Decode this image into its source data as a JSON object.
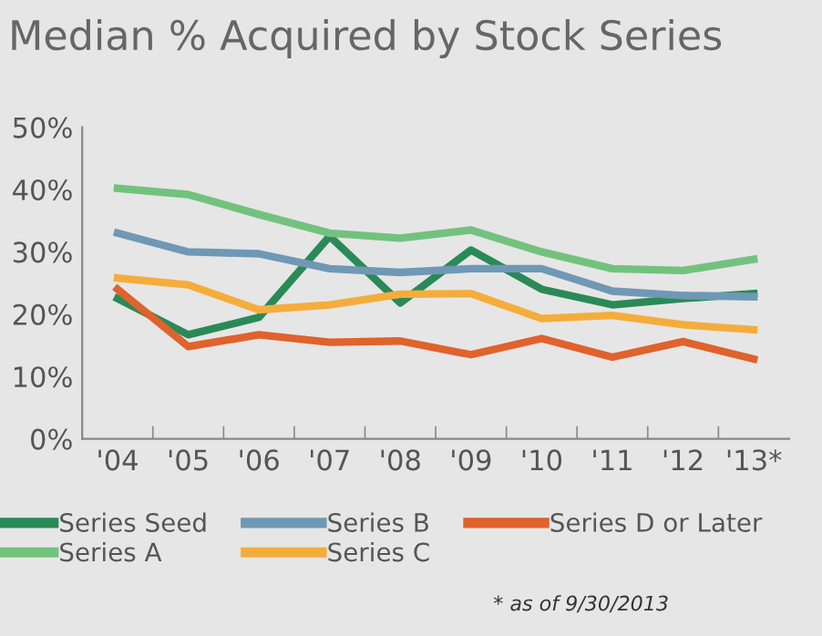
{
  "chart_data": {
    "type": "line",
    "title": "Median % Acquired by Stock Series",
    "categories": [
      "'04",
      "'05",
      "'06",
      "'07",
      "'08",
      "'09",
      "'10",
      "'11",
      "'12",
      "'13*"
    ],
    "series": [
      {
        "name": "Series Seed",
        "color": "#2a8a57",
        "values": [
          22.5,
          16.7,
          19.5,
          32.5,
          21.8,
          30.3,
          24,
          21.5,
          22.5,
          23.3
        ]
      },
      {
        "name": "Series A",
        "color": "#72c27e",
        "values": [
          40.2,
          39.2,
          36,
          33,
          32.2,
          33.5,
          30,
          27.3,
          27,
          28.8
        ]
      },
      {
        "name": "Series B",
        "color": "#6f98b5",
        "values": [
          33,
          30,
          29.7,
          27.3,
          26.7,
          27.3,
          27.3,
          23.7,
          23,
          22.8
        ]
      },
      {
        "name": "Series C",
        "color": "#f4ad3c",
        "values": [
          25.8,
          24.7,
          20.7,
          21.5,
          23.2,
          23.3,
          19.3,
          19.8,
          18.3,
          17.5
        ]
      },
      {
        "name": "Series D or Later",
        "color": "#e0622c",
        "values": [
          24,
          14.8,
          16.7,
          15.5,
          15.7,
          13.5,
          16.1,
          13.1,
          15.6,
          12.8
        ]
      }
    ],
    "ylim": [
      0,
      50
    ],
    "yticks": [
      {
        "value": 0,
        "label": "0%"
      },
      {
        "value": 10,
        "label": "10%"
      },
      {
        "value": 20,
        "label": "20%"
      },
      {
        "value": 30,
        "label": "30%"
      },
      {
        "value": 40,
        "label": "40%"
      },
      {
        "value": 50,
        "label": "50%"
      }
    ],
    "grid": false,
    "legend": "bottom",
    "marker": "none",
    "line_style": "solid",
    "annotations": [
      "* as of 9/30/2013"
    ]
  }
}
